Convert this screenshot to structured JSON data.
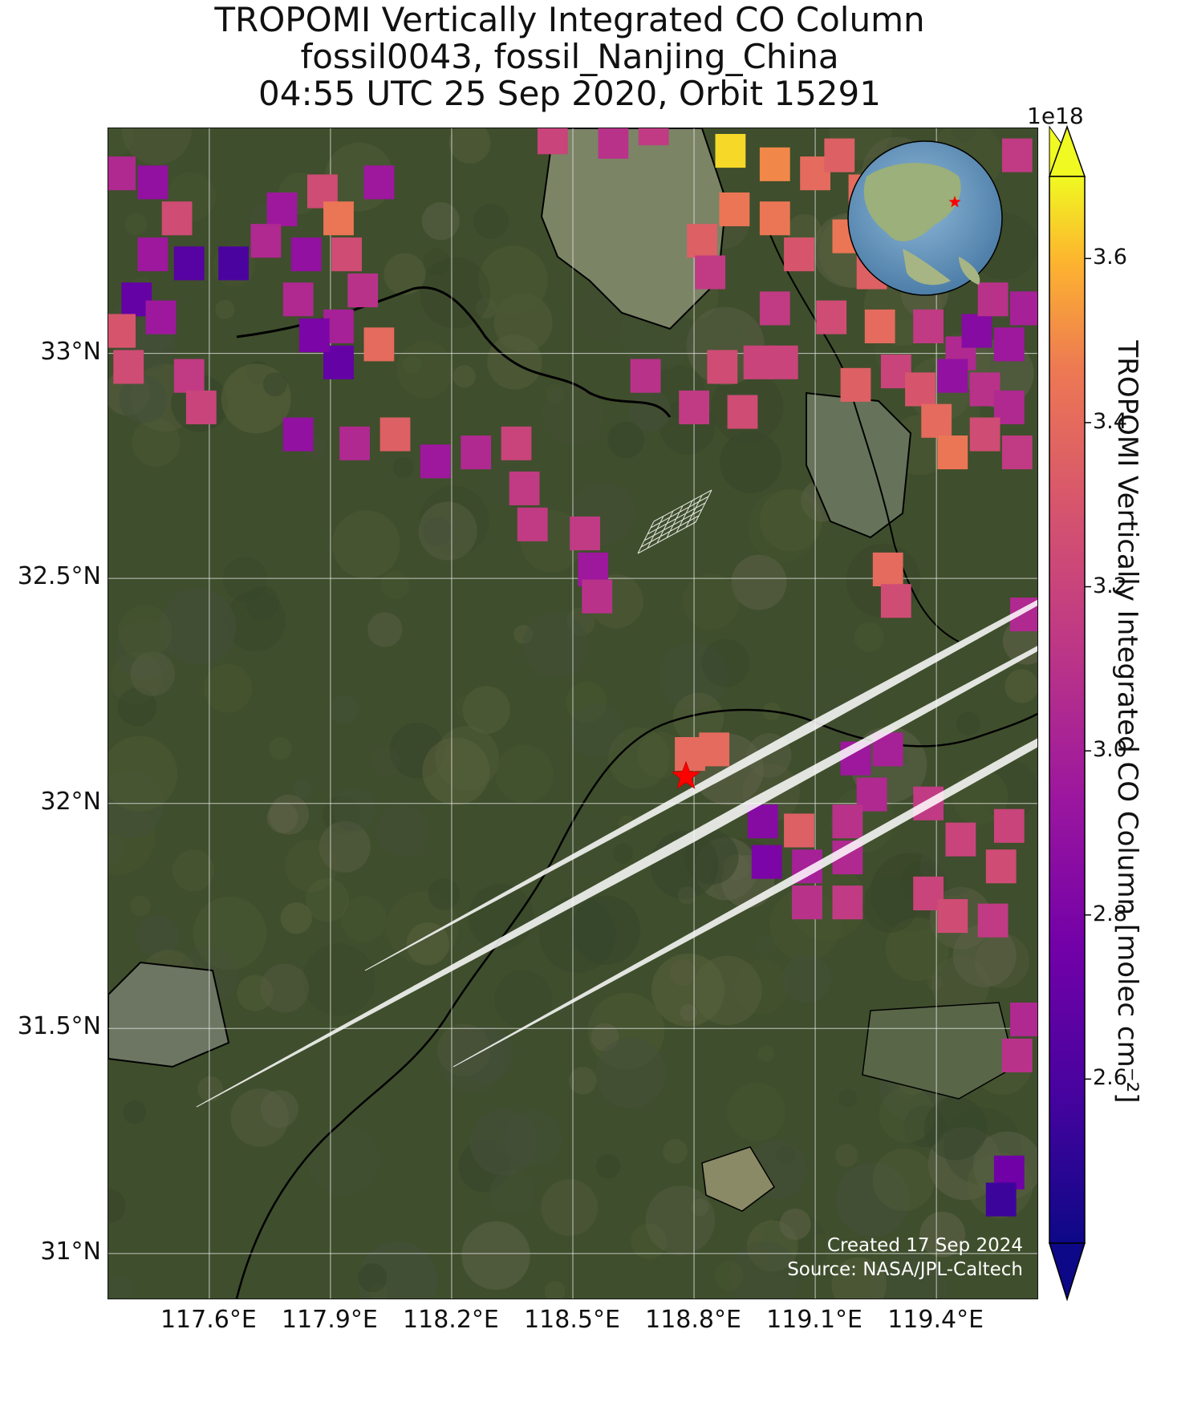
{
  "title": {
    "line1": "TROPOMI Vertically Integrated CO Column",
    "line2": "fossil0043, fossil_Nanjing_China",
    "line3": "04:55 UTC 25 Sep 2020, Orbit 15291"
  },
  "map": {
    "lon_range": [
      117.35,
      119.65
    ],
    "lat_range": [
      30.9,
      33.5
    ],
    "lon_ticks": [
      "117.6°E",
      "117.9°E",
      "118.2°E",
      "118.5°E",
      "118.8°E",
      "119.1°E",
      "119.4°E"
    ],
    "lat_ticks": [
      "33°N",
      "32.5°N",
      "32°N",
      "31.5°N",
      "31°N"
    ],
    "lon_tick_values": [
      117.6,
      117.9,
      118.2,
      118.5,
      118.8,
      119.1,
      119.4
    ],
    "lat_tick_values": [
      33.0,
      32.5,
      32.0,
      31.5,
      31.0
    ],
    "gridlines": true,
    "target_site": {
      "lon": 118.78,
      "lat": 32.06,
      "marker": "red-star"
    },
    "inset_globe": {
      "position": "top-right",
      "marker": "red-star"
    },
    "colors": {
      "land": "#3f4e2c",
      "water": "#7a8262",
      "grid": "#e6e6e6",
      "footprint_outline": "#ffffff",
      "star": "#ff0000"
    }
  },
  "colorbar": {
    "label": "TROPOMI Vertically Integrated CO Column [molec cm⁻²]",
    "exponent": "1e18",
    "ticks": [
      "2.6",
      "2.8",
      "3.0",
      "3.2",
      "3.4",
      "3.6"
    ],
    "tick_values": [
      2.6,
      2.8,
      3.0,
      3.2,
      3.4,
      3.6
    ],
    "range": [
      2.4,
      3.7
    ],
    "colormap": "plasma",
    "extend": "both"
  },
  "credit": {
    "created": "Created 17 Sep 2024",
    "source": "Source: NASA/JPL-Caltech"
  },
  "chart_data": {
    "type": "heatmap",
    "description_units": "value in 1e18 molec cm^-2",
    "pixels": [
      {
        "lon": 117.38,
        "lat": 33.4,
        "v": 3.05
      },
      {
        "lon": 117.46,
        "lat": 33.38,
        "v": 2.9
      },
      {
        "lon": 117.52,
        "lat": 33.3,
        "v": 3.25
      },
      {
        "lon": 117.46,
        "lat": 33.22,
        "v": 2.95
      },
      {
        "lon": 117.55,
        "lat": 33.2,
        "v": 2.65
      },
      {
        "lon": 117.42,
        "lat": 33.12,
        "v": 2.7
      },
      {
        "lon": 117.66,
        "lat": 33.2,
        "v": 2.6
      },
      {
        "lon": 117.38,
        "lat": 33.05,
        "v": 3.3
      },
      {
        "lon": 117.48,
        "lat": 33.08,
        "v": 2.95
      },
      {
        "lon": 117.4,
        "lat": 32.97,
        "v": 3.25
      },
      {
        "lon": 117.55,
        "lat": 32.95,
        "v": 3.15
      },
      {
        "lon": 117.58,
        "lat": 32.88,
        "v": 3.2
      },
      {
        "lon": 117.78,
        "lat": 33.32,
        "v": 2.95
      },
      {
        "lon": 117.74,
        "lat": 33.25,
        "v": 3.05
      },
      {
        "lon": 117.88,
        "lat": 33.36,
        "v": 3.25
      },
      {
        "lon": 117.92,
        "lat": 33.3,
        "v": 3.45
      },
      {
        "lon": 117.94,
        "lat": 33.22,
        "v": 3.25
      },
      {
        "lon": 117.84,
        "lat": 33.22,
        "v": 2.9
      },
      {
        "lon": 118.02,
        "lat": 33.38,
        "v": 2.95
      },
      {
        "lon": 117.82,
        "lat": 33.12,
        "v": 3.05
      },
      {
        "lon": 117.98,
        "lat": 33.14,
        "v": 3.1
      },
      {
        "lon": 117.92,
        "lat": 33.06,
        "v": 3.0
      },
      {
        "lon": 118.02,
        "lat": 33.02,
        "v": 3.4
      },
      {
        "lon": 117.92,
        "lat": 32.98,
        "v": 2.7
      },
      {
        "lon": 117.86,
        "lat": 33.04,
        "v": 2.8
      },
      {
        "lon": 117.82,
        "lat": 32.82,
        "v": 2.9
      },
      {
        "lon": 117.96,
        "lat": 32.8,
        "v": 3.05
      },
      {
        "lon": 118.06,
        "lat": 32.82,
        "v": 3.35
      },
      {
        "lon": 118.16,
        "lat": 32.76,
        "v": 2.95
      },
      {
        "lon": 118.26,
        "lat": 32.78,
        "v": 3.05
      },
      {
        "lon": 118.36,
        "lat": 32.8,
        "v": 3.2
      },
      {
        "lon": 118.38,
        "lat": 32.7,
        "v": 3.15
      },
      {
        "lon": 118.4,
        "lat": 32.62,
        "v": 3.15
      },
      {
        "lon": 118.53,
        "lat": 32.6,
        "v": 3.15
      },
      {
        "lon": 118.55,
        "lat": 32.52,
        "v": 2.95
      },
      {
        "lon": 118.56,
        "lat": 32.46,
        "v": 3.1
      },
      {
        "lon": 118.68,
        "lat": 32.95,
        "v": 3.1
      },
      {
        "lon": 118.45,
        "lat": 33.48,
        "v": 3.2
      },
      {
        "lon": 118.6,
        "lat": 33.47,
        "v": 3.1
      },
      {
        "lon": 118.7,
        "lat": 33.5,
        "v": 3.15
      },
      {
        "lon": 118.89,
        "lat": 33.45,
        "v": 3.65
      },
      {
        "lon": 119.0,
        "lat": 33.42,
        "v": 3.5
      },
      {
        "lon": 118.9,
        "lat": 33.32,
        "v": 3.45
      },
      {
        "lon": 118.82,
        "lat": 33.25,
        "v": 3.35
      },
      {
        "lon": 118.84,
        "lat": 33.18,
        "v": 3.15
      },
      {
        "lon": 119.0,
        "lat": 33.3,
        "v": 3.45
      },
      {
        "lon": 119.1,
        "lat": 33.4,
        "v": 3.4
      },
      {
        "lon": 119.16,
        "lat": 33.44,
        "v": 3.35
      },
      {
        "lon": 119.22,
        "lat": 33.36,
        "v": 3.4
      },
      {
        "lon": 119.06,
        "lat": 33.22,
        "v": 3.3
      },
      {
        "lon": 119.18,
        "lat": 33.26,
        "v": 3.45
      },
      {
        "lon": 119.24,
        "lat": 33.18,
        "v": 3.35
      },
      {
        "lon": 119.14,
        "lat": 33.08,
        "v": 3.25
      },
      {
        "lon": 119.26,
        "lat": 33.06,
        "v": 3.4
      },
      {
        "lon": 119.0,
        "lat": 33.1,
        "v": 3.15
      },
      {
        "lon": 119.02,
        "lat": 32.98,
        "v": 3.2
      },
      {
        "lon": 118.96,
        "lat": 32.98,
        "v": 3.2
      },
      {
        "lon": 118.87,
        "lat": 32.97,
        "v": 3.25
      },
      {
        "lon": 118.8,
        "lat": 32.88,
        "v": 3.15
      },
      {
        "lon": 118.92,
        "lat": 32.87,
        "v": 3.25
      },
      {
        "lon": 119.2,
        "lat": 32.93,
        "v": 3.35
      },
      {
        "lon": 119.3,
        "lat": 32.96,
        "v": 3.2
      },
      {
        "lon": 119.36,
        "lat": 32.92,
        "v": 3.3
      },
      {
        "lon": 119.4,
        "lat": 32.85,
        "v": 3.4
      },
      {
        "lon": 119.44,
        "lat": 32.78,
        "v": 3.45
      },
      {
        "lon": 119.38,
        "lat": 33.06,
        "v": 3.15
      },
      {
        "lon": 119.46,
        "lat": 33.0,
        "v": 3.05
      },
      {
        "lon": 119.5,
        "lat": 33.05,
        "v": 2.85
      },
      {
        "lon": 119.58,
        "lat": 33.02,
        "v": 2.95
      },
      {
        "lon": 119.52,
        "lat": 32.92,
        "v": 3.1
      },
      {
        "lon": 119.44,
        "lat": 32.95,
        "v": 2.9
      },
      {
        "lon": 119.58,
        "lat": 32.88,
        "v": 3.05
      },
      {
        "lon": 119.52,
        "lat": 32.82,
        "v": 3.25
      },
      {
        "lon": 119.6,
        "lat": 32.78,
        "v": 3.15
      },
      {
        "lon": 119.54,
        "lat": 33.12,
        "v": 3.1
      },
      {
        "lon": 119.62,
        "lat": 33.1,
        "v": 3.0
      },
      {
        "lon": 119.6,
        "lat": 33.44,
        "v": 3.15
      },
      {
        "lon": 119.28,
        "lat": 32.52,
        "v": 3.4
      },
      {
        "lon": 119.3,
        "lat": 32.45,
        "v": 3.25
      },
      {
        "lon": 119.62,
        "lat": 32.42,
        "v": 3.05
      },
      {
        "lon": 118.85,
        "lat": 32.12,
        "v": 3.4
      },
      {
        "lon": 118.79,
        "lat": 32.11,
        "v": 3.4
      },
      {
        "lon": 119.2,
        "lat": 32.1,
        "v": 2.95
      },
      {
        "lon": 119.28,
        "lat": 32.12,
        "v": 3.0
      },
      {
        "lon": 119.24,
        "lat": 32.02,
        "v": 3.05
      },
      {
        "lon": 119.18,
        "lat": 31.96,
        "v": 3.1
      },
      {
        "lon": 119.06,
        "lat": 31.94,
        "v": 3.35
      },
      {
        "lon": 118.97,
        "lat": 31.96,
        "v": 2.85
      },
      {
        "lon": 118.98,
        "lat": 31.87,
        "v": 2.8
      },
      {
        "lon": 119.08,
        "lat": 31.86,
        "v": 3.0
      },
      {
        "lon": 119.18,
        "lat": 31.88,
        "v": 3.05
      },
      {
        "lon": 119.08,
        "lat": 31.78,
        "v": 3.1
      },
      {
        "lon": 119.18,
        "lat": 31.78,
        "v": 3.15
      },
      {
        "lon": 119.38,
        "lat": 32.0,
        "v": 3.15
      },
      {
        "lon": 119.46,
        "lat": 31.92,
        "v": 3.2
      },
      {
        "lon": 119.38,
        "lat": 31.8,
        "v": 3.2
      },
      {
        "lon": 119.44,
        "lat": 31.75,
        "v": 3.25
      },
      {
        "lon": 119.54,
        "lat": 31.74,
        "v": 3.15
      },
      {
        "lon": 119.56,
        "lat": 31.86,
        "v": 3.25
      },
      {
        "lon": 119.58,
        "lat": 31.95,
        "v": 3.2
      },
      {
        "lon": 119.62,
        "lat": 31.52,
        "v": 3.05
      },
      {
        "lon": 119.6,
        "lat": 31.44,
        "v": 3.1
      },
      {
        "lon": 119.58,
        "lat": 31.18,
        "v": 2.75
      },
      {
        "lon": 119.56,
        "lat": 31.12,
        "v": 2.55
      }
    ]
  }
}
